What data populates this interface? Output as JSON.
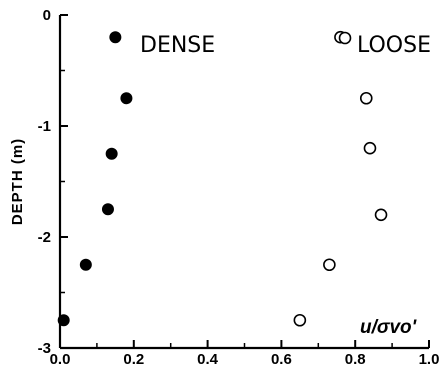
{
  "chart_data": {
    "type": "scatter",
    "title": "",
    "xlabel": "u/σvo'",
    "ylabel": "DEPTH (m)",
    "xlim": [
      0.0,
      1.0
    ],
    "ylim": [
      -3,
      0
    ],
    "grid": false,
    "x_ticks": [
      0.0,
      0.2,
      0.4,
      0.6,
      0.8,
      1.0
    ],
    "x_tick_labels": [
      "0.0",
      "0.2",
      "0.4",
      "0.6",
      "0.8",
      "1.0"
    ],
    "y_ticks": [
      0,
      -1,
      -2,
      -3
    ],
    "y_tick_labels": [
      "0",
      "-1",
      "-2",
      "-3"
    ],
    "legend_placement": "top",
    "series": [
      {
        "name": "DENSE",
        "marker": "filled-circle",
        "color": "#000000",
        "points": [
          {
            "x": 0.15,
            "y": -0.2
          },
          {
            "x": 0.18,
            "y": -0.75
          },
          {
            "x": 0.14,
            "y": -1.25
          },
          {
            "x": 0.13,
            "y": -1.75
          },
          {
            "x": 0.07,
            "y": -2.25
          },
          {
            "x": 0.01,
            "y": -2.75
          }
        ]
      },
      {
        "name": "LOOSE",
        "marker": "open-circle",
        "color": "#000000",
        "points": [
          {
            "x": 0.76,
            "y": -0.2
          },
          {
            "x": 0.83,
            "y": -0.75
          },
          {
            "x": 0.84,
            "y": -1.2
          },
          {
            "x": 0.87,
            "y": -1.8
          },
          {
            "x": 0.73,
            "y": -2.25
          },
          {
            "x": 0.65,
            "y": -2.75
          }
        ]
      }
    ]
  }
}
